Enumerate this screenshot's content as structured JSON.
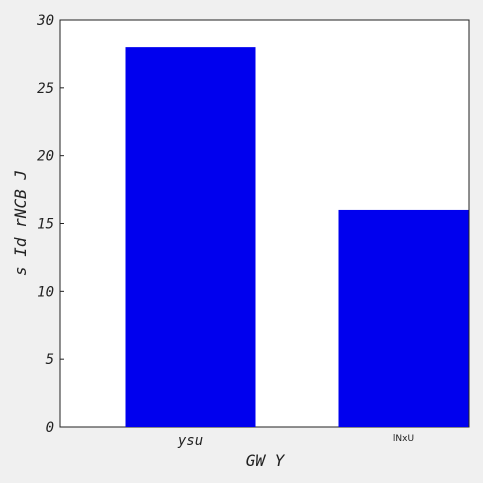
{
  "chart_data": {
    "type": "bar",
    "title": "",
    "categories": [
      "ysu",
      "lNxU"
    ],
    "values": [
      28,
      16
    ],
    "xlabel": "GW Y",
    "ylabel": "s Id rNCB J",
    "ylim": [
      0,
      30
    ],
    "yticks": [
      0,
      5,
      10,
      15,
      20,
      25,
      30
    ],
    "bar_color": "#0000ee",
    "grid": false,
    "legend": "none"
  }
}
